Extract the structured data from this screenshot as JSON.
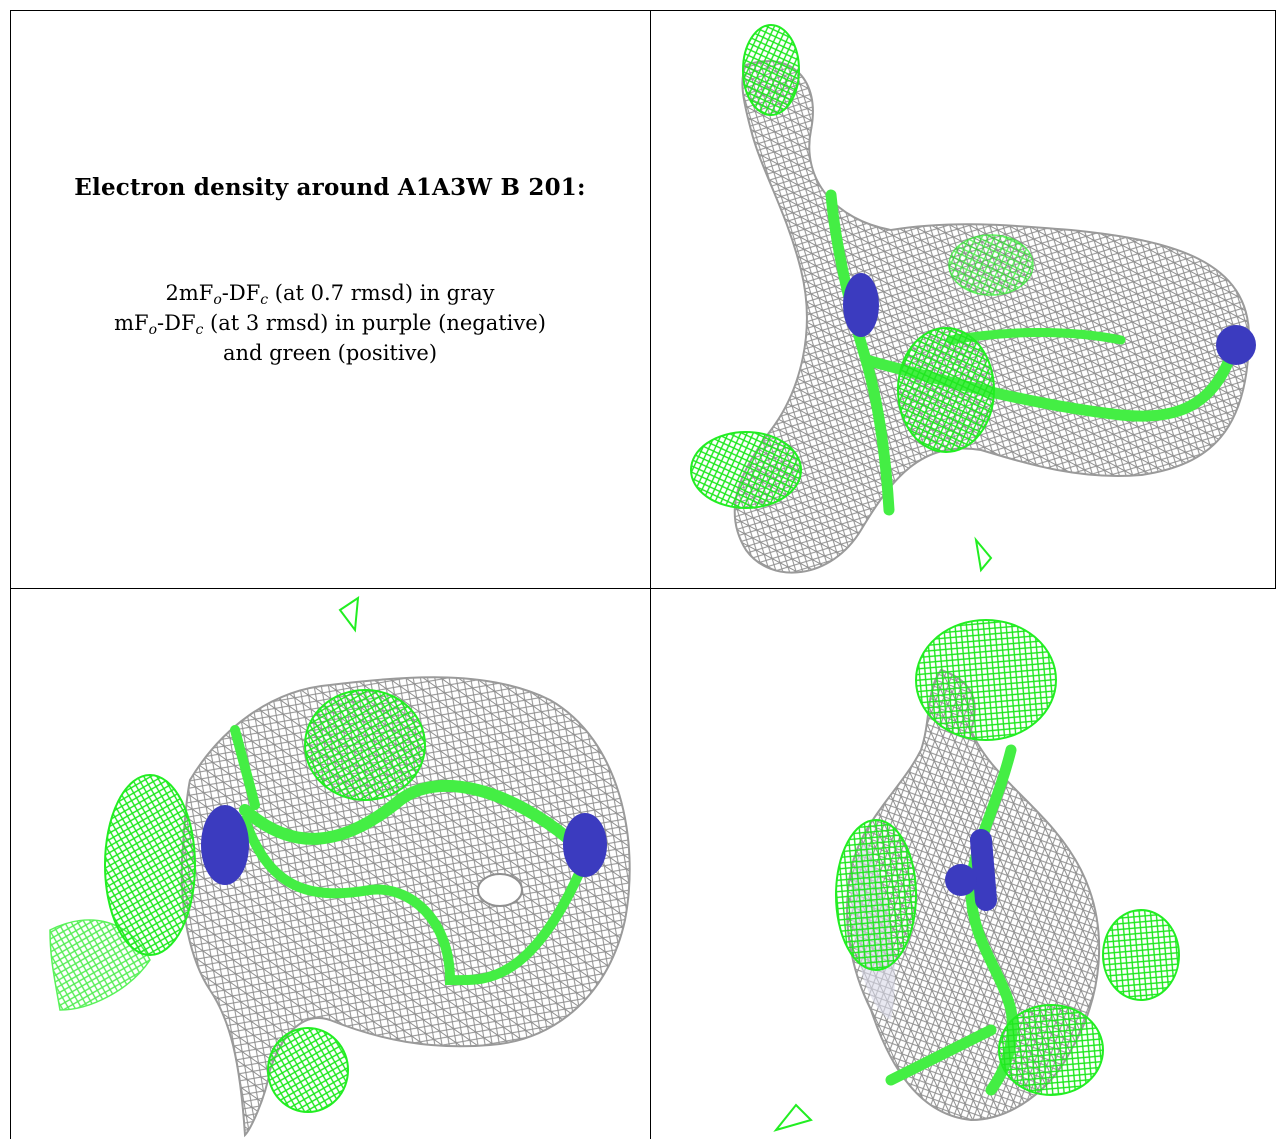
{
  "caption": {
    "title": "Electron density around A1A3W B 201:",
    "line1": {
      "a": "2mF",
      "sub_o": "o",
      "b": "-DF",
      "sub_c": "c",
      "rest": " (at 0.7 rmsd) in gray"
    },
    "line2": {
      "a": "mF",
      "sub_o": "o",
      "b": "-DF",
      "sub_c": "c",
      "rest": " (at 3 rmsd) in purple (negative)"
    },
    "line3": "and green (positive)"
  },
  "colors": {
    "mesh_gray": "#9a9a9a",
    "mesh_green": "#22ee22",
    "stick_green": "#44ee44",
    "atom_blue": "#3b3bbf",
    "border": "#000000"
  },
  "panels": [
    {
      "name": "view-top-right"
    },
    {
      "name": "view-bottom-left"
    },
    {
      "name": "view-bottom-right"
    }
  ]
}
